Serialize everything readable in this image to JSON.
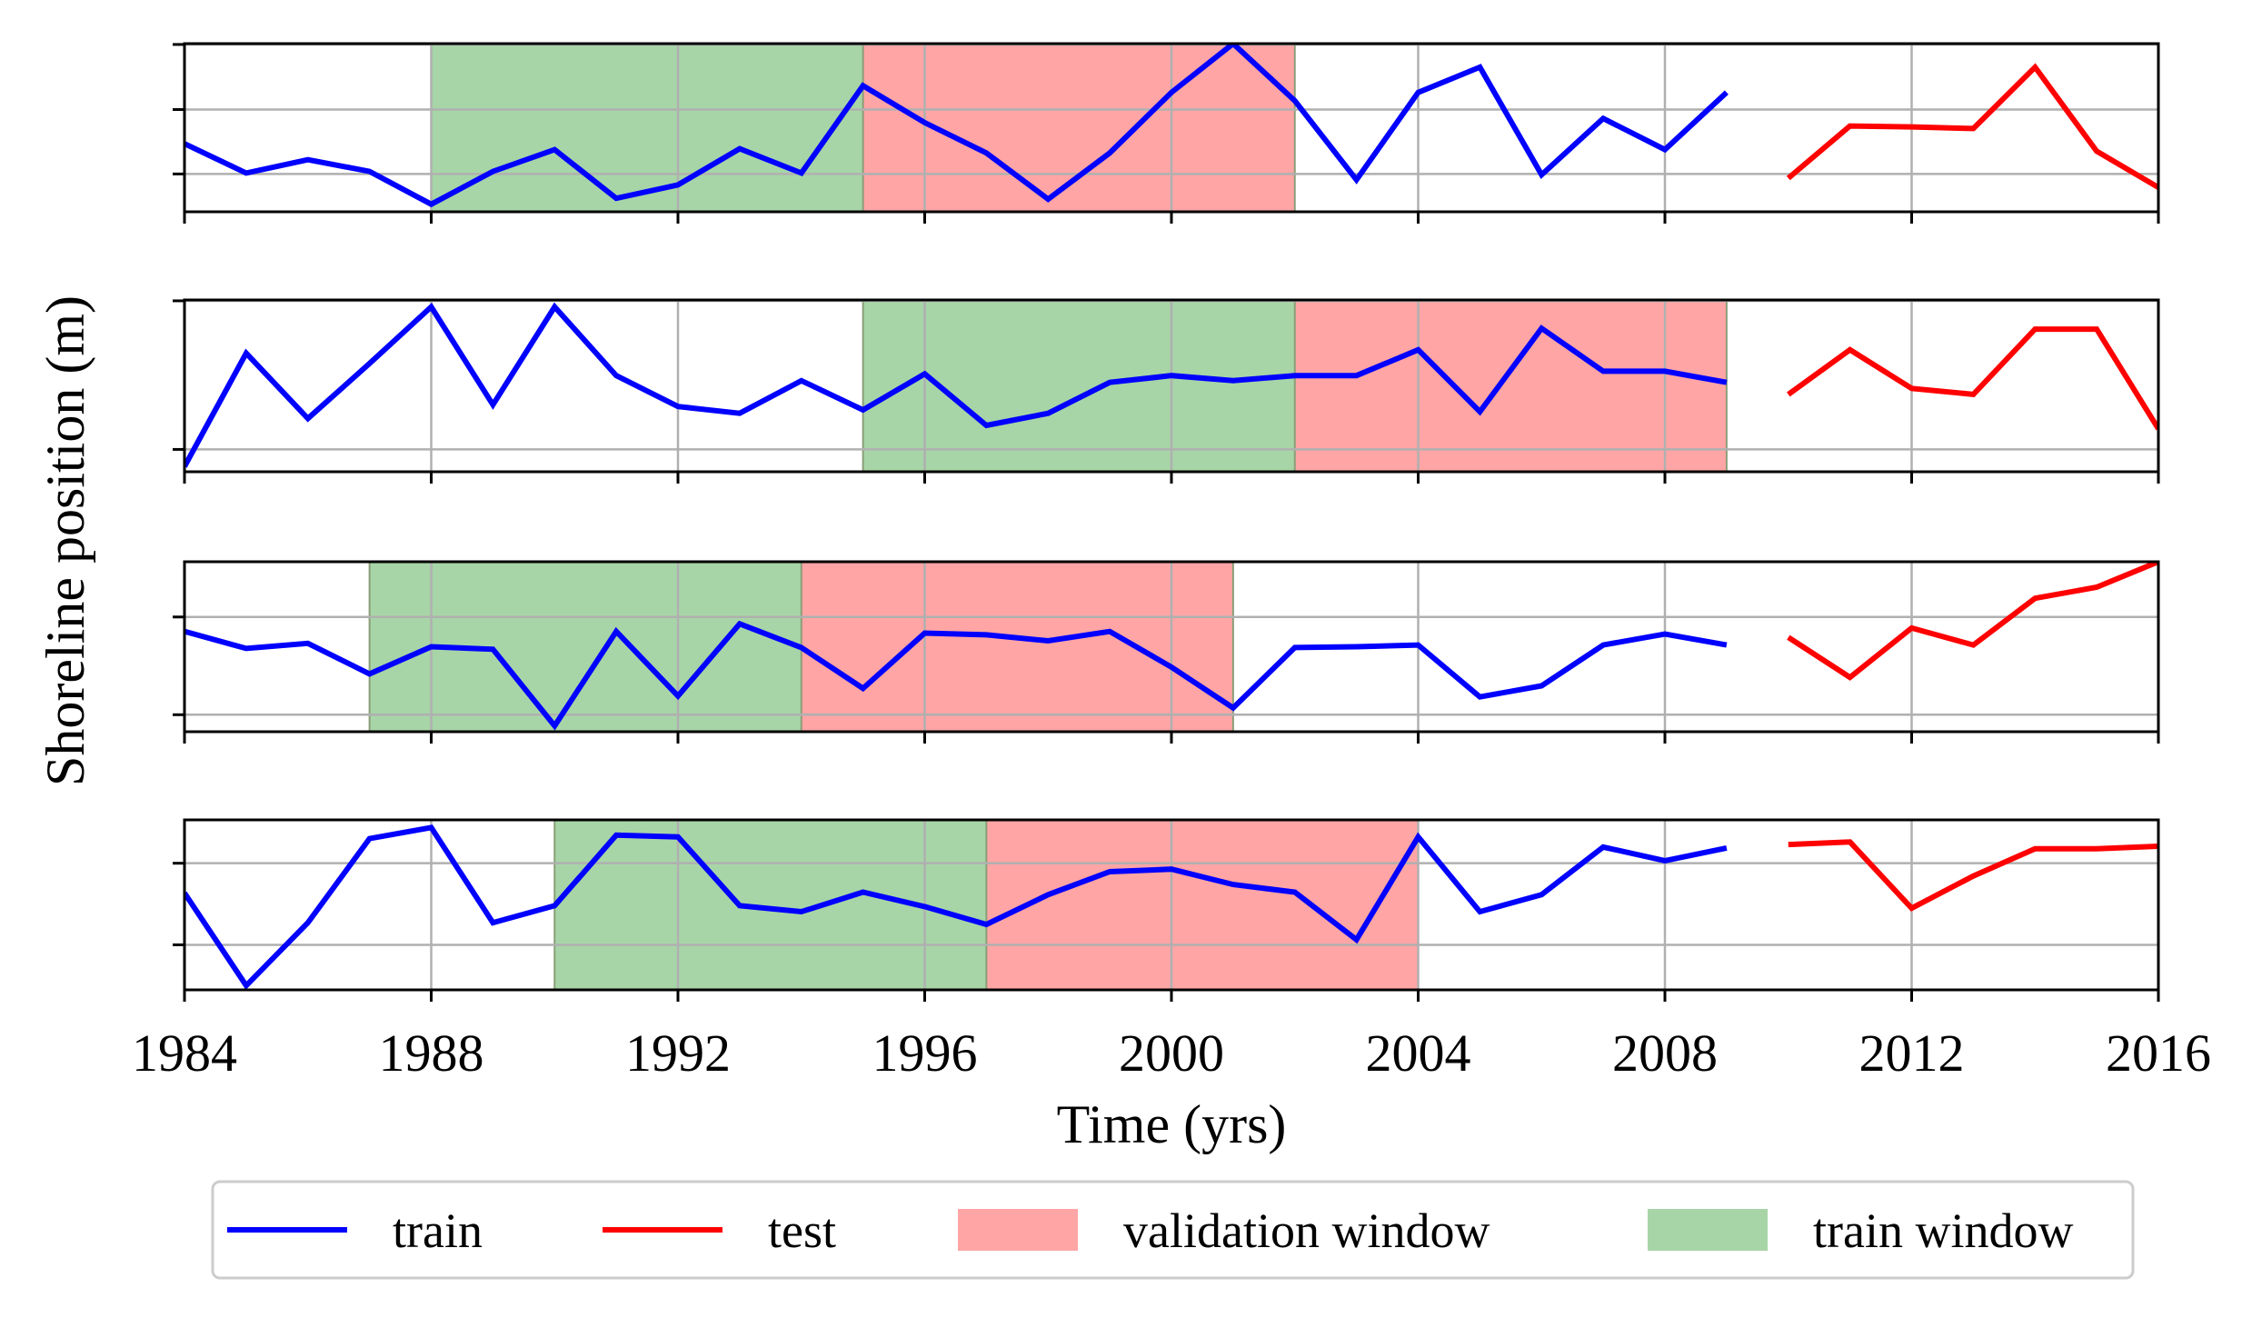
{
  "chart_data": {
    "type": "line",
    "layout": "4 stacked panels sharing the x axis",
    "xlabel": "Time (yrs)",
    "ylabel": "Shoreline position (m)",
    "xlim": [
      1984,
      2016
    ],
    "xticks": [
      "1984",
      "1988",
      "1992",
      "1996",
      "2000",
      "2004",
      "2008",
      "2012",
      "2016"
    ],
    "legend": {
      "position": "bottom-center",
      "entries": [
        {
          "label": "train",
          "kind": "line",
          "color": "#0000ff"
        },
        {
          "label": "test",
          "kind": "line",
          "color": "#ff0000"
        },
        {
          "label": "validation window",
          "kind": "patch",
          "color": "#ffa5a5"
        },
        {
          "label": "train window",
          "kind": "patch",
          "color": "#a7d5a7"
        }
      ]
    },
    "colors": {
      "train": "#0000ff",
      "test": "#ff0000",
      "validation_window": "#ffa5a5",
      "train_window": "#a7d5a7",
      "grid": "#b0b0b0"
    },
    "panels": [
      {
        "name": "panel-1",
        "ylim": [
          0,
          1
        ],
        "yticks": [
          0.225,
          0.608,
          0.995
        ],
        "train_window": [
          1988,
          1995
        ],
        "validation_window": [
          1995,
          2002
        ],
        "train": {
          "x": [
            1984,
            1985,
            1986,
            1987,
            1988,
            1989,
            1990,
            1991,
            1992,
            1993,
            1994,
            1995,
            1996,
            1997,
            1998,
            1999,
            2000,
            2001,
            2002,
            2003,
            2004,
            2005,
            2006,
            2007,
            2008,
            2009
          ],
          "y": [
            0.405,
            0.23,
            0.31,
            0.24,
            0.045,
            0.24,
            0.37,
            0.08,
            0.16,
            0.375,
            0.23,
            0.75,
            0.53,
            0.35,
            0.075,
            0.35,
            0.71,
            1.0,
            0.66,
            0.19,
            0.71,
            0.86,
            0.22,
            0.555,
            0.37,
            0.71
          ]
        },
        "test": {
          "x": [
            2010,
            2011,
            2012,
            2013,
            2014,
            2015,
            2016
          ],
          "y": [
            0.2,
            0.51,
            0.505,
            0.495,
            0.86,
            0.36,
            0.145
          ]
        }
      },
      {
        "name": "panel-2",
        "ylim": [
          0,
          1
        ],
        "yticks": [
          0.13,
          0.995
        ],
        "train_window": [
          1995,
          2002
        ],
        "validation_window": [
          2002,
          2009
        ],
        "train": {
          "x": [
            1984,
            1985,
            1986,
            1987,
            1988,
            1989,
            1990,
            1991,
            1992,
            1993,
            1994,
            1995,
            1996,
            1997,
            1998,
            1999,
            2000,
            2001,
            2002,
            2003,
            2004,
            2005,
            2006,
            2007,
            2008,
            2009
          ],
          "y": [
            0.03,
            0.69,
            0.31,
            0.63,
            0.96,
            0.39,
            0.96,
            0.56,
            0.38,
            0.34,
            0.53,
            0.36,
            0.57,
            0.27,
            0.34,
            0.52,
            0.56,
            0.53,
            0.56,
            0.56,
            0.71,
            0.35,
            0.835,
            0.585,
            0.585,
            0.52
          ]
        },
        "test": {
          "x": [
            2010,
            2011,
            2012,
            2013,
            2014,
            2015,
            2016
          ],
          "y": [
            0.45,
            0.71,
            0.485,
            0.45,
            0.83,
            0.83,
            0.25
          ]
        }
      },
      {
        "name": "panel-3",
        "ylim": [
          0,
          1
        ],
        "yticks": [
          0.1,
          0.675
        ],
        "train_window": [
          1987,
          1994
        ],
        "validation_window": [
          1994,
          2001
        ],
        "train": {
          "x": [
            1984,
            1985,
            1986,
            1987,
            1988,
            1989,
            1990,
            1991,
            1992,
            1993,
            1994,
            1995,
            1996,
            1997,
            1998,
            1999,
            2000,
            2001,
            2002,
            2003,
            2004,
            2005,
            2006,
            2007,
            2008,
            2009
          ],
          "y": [
            0.59,
            0.49,
            0.52,
            0.34,
            0.5,
            0.485,
            0.035,
            0.59,
            0.21,
            0.635,
            0.495,
            0.255,
            0.58,
            0.57,
            0.535,
            0.59,
            0.38,
            0.14,
            0.495,
            0.5,
            0.51,
            0.205,
            0.27,
            0.51,
            0.575,
            0.51
          ]
        },
        "test": {
          "x": [
            2010,
            2011,
            2012,
            2013,
            2014,
            2015,
            2016
          ],
          "y": [
            0.555,
            0.32,
            0.61,
            0.51,
            0.785,
            0.85,
            1.0
          ]
        }
      },
      {
        "name": "panel-4",
        "ylim": [
          0,
          1
        ],
        "yticks": [
          0.265,
          0.745
        ],
        "train_window": [
          1990,
          1997
        ],
        "validation_window": [
          1997,
          2004
        ],
        "train": {
          "x": [
            1984,
            1985,
            1986,
            1987,
            1988,
            1989,
            1990,
            1991,
            1992,
            1993,
            1994,
            1995,
            1996,
            1997,
            1998,
            1999,
            2000,
            2001,
            2002,
            2003,
            2004,
            2005,
            2006,
            2007,
            2008,
            2009
          ],
          "y": [
            0.57,
            0.025,
            0.395,
            0.89,
            0.955,
            0.395,
            0.495,
            0.91,
            0.9,
            0.495,
            0.46,
            0.575,
            0.49,
            0.385,
            0.56,
            0.695,
            0.71,
            0.62,
            0.575,
            0.295,
            0.9,
            0.46,
            0.56,
            0.84,
            0.76,
            0.835
          ]
        },
        "test": {
          "x": [
            2010,
            2011,
            2012,
            2013,
            2014,
            2015,
            2016
          ],
          "y": [
            0.855,
            0.87,
            0.48,
            0.67,
            0.83,
            0.83,
            0.845
          ]
        }
      }
    ]
  }
}
